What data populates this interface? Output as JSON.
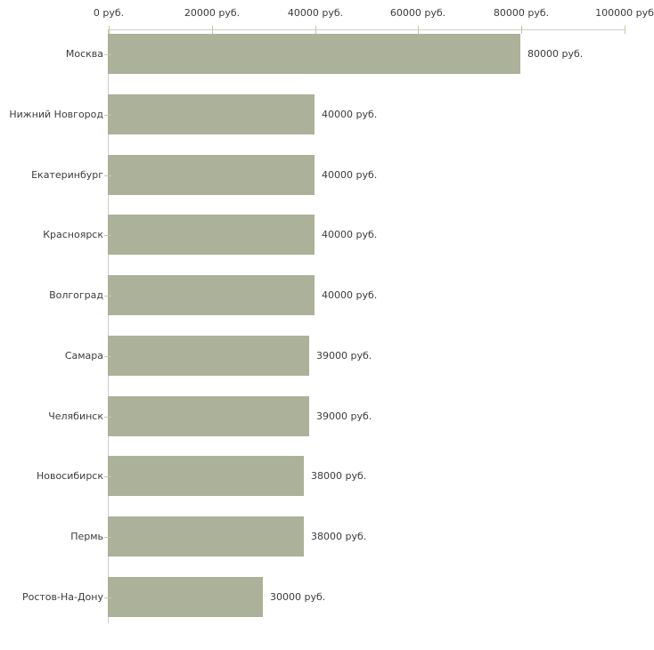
{
  "chart_data": {
    "type": "bar",
    "orientation": "horizontal",
    "title": "",
    "xlabel": "",
    "ylabel": "",
    "categories": [
      "Москва",
      "Нижний Новгород",
      "Екатеринбург",
      "Красноярск",
      "Волгоград",
      "Самара",
      "Челябинск",
      "Новосибирск",
      "Пермь",
      "Ростов-На-Дону"
    ],
    "values": [
      80000,
      40000,
      40000,
      40000,
      40000,
      39000,
      39000,
      38000,
      38000,
      30000
    ],
    "value_labels": [
      "80000 руб.",
      "40000 руб.",
      "40000 руб.",
      "40000 руб.",
      "40000 руб.",
      "39000 руб.",
      "39000 руб.",
      "38000 руб.",
      "38000 руб.",
      "30000 руб."
    ],
    "x_axis": {
      "position": "top",
      "min": 0,
      "max": 100000,
      "ticks": [
        0,
        20000,
        40000,
        60000,
        80000,
        100000
      ],
      "tick_labels": [
        "0 руб.",
        "20000 руб.",
        "40000 руб.",
        "60000 руб.",
        "80000 руб.",
        "100000 руб"
      ]
    },
    "legend": null,
    "grid": false,
    "colors": {
      "bar": "#acb199",
      "axis_line": "#cccccc",
      "tick": "#c6c6a0",
      "text": "#3c3c3c",
      "background": "#ffffff"
    }
  }
}
